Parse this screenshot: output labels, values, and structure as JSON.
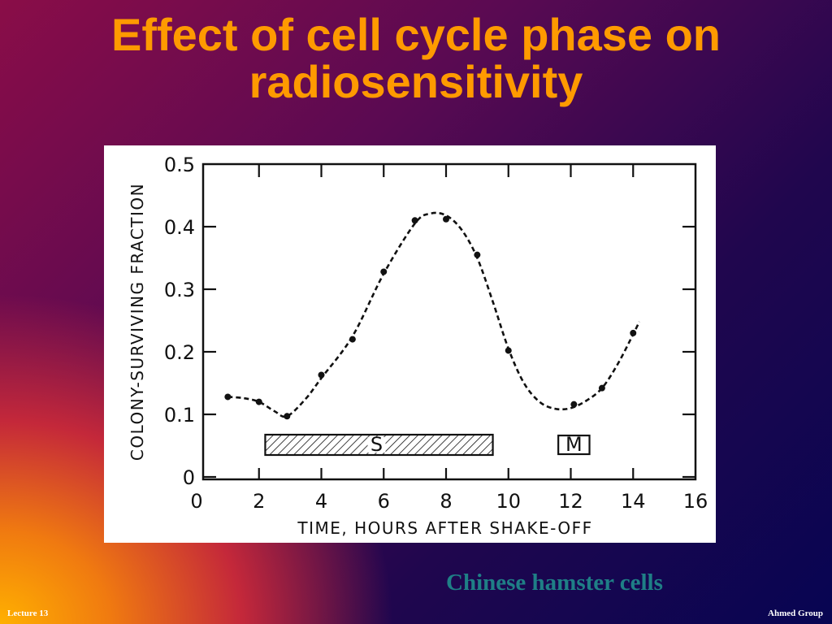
{
  "slide": {
    "title_line1": "Effect of cell cycle phase on",
    "title_line2": "radiosensitivity",
    "caption": "Chinese hamster cells",
    "footer_left": "Lecture 13",
    "footer_right": "Ahmed Group"
  },
  "chart_data": {
    "type": "scatter",
    "title": "",
    "xlabel": "TIME, HOURS AFTER SHAKE-OFF",
    "ylabel": "COLONY-SURVIVING FRACTION",
    "xlim": [
      0,
      16
    ],
    "ylim": [
      0,
      0.5
    ],
    "x_ticks": [
      "0",
      "2",
      "4",
      "6",
      "8",
      "10",
      "12",
      "14",
      "16"
    ],
    "y_ticks": [
      "0",
      "0.1",
      "0.2",
      "0.3",
      "0.4",
      "0.5"
    ],
    "grid": false,
    "series": [
      {
        "x": [
          1.0,
          2.0,
          2.9,
          4.0,
          5.0,
          6.0,
          7.0,
          8.0,
          9.0,
          10.0,
          12.1,
          13.0,
          14.0
        ],
        "y": [
          0.128,
          0.12,
          0.097,
          0.163,
          0.22,
          0.328,
          0.41,
          0.412,
          0.355,
          0.202,
          0.116,
          0.142,
          0.23
        ]
      }
    ],
    "trend_curve": {
      "style": "dashed",
      "x": [
        1.0,
        1.5,
        2.0,
        2.5,
        2.9,
        3.5,
        4.0,
        5.0,
        6.0,
        7.0,
        7.5,
        8.0,
        8.5,
        9.0,
        9.5,
        10.0,
        10.5,
        11.0,
        11.5,
        12.0,
        12.5,
        13.0,
        13.5,
        14.0,
        14.2
      ],
      "y": [
        0.128,
        0.126,
        0.12,
        0.105,
        0.097,
        0.125,
        0.158,
        0.225,
        0.325,
        0.405,
        0.421,
        0.418,
        0.395,
        0.35,
        0.28,
        0.205,
        0.15,
        0.12,
        0.109,
        0.11,
        0.122,
        0.142,
        0.18,
        0.228,
        0.248
      ]
    },
    "phase_bars": [
      {
        "label": "S",
        "pattern": "hatched"
      },
      {
        "label": "M",
        "pattern": "none"
      }
    ]
  }
}
